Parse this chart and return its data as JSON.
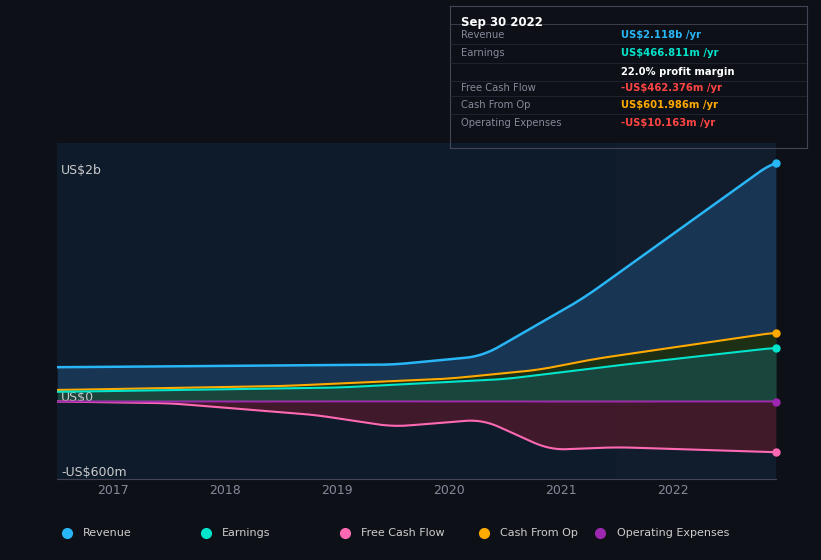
{
  "bg_color": "#0d1117",
  "plot_bg_color": "#0d1b2a",
  "ylabel_top": "US$2b",
  "ylabel_zero": "US$0",
  "ylabel_bottom": "-US$600m",
  "x_ticks": [
    2017,
    2018,
    2019,
    2020,
    2021,
    2022
  ],
  "xlim": [
    2016.5,
    2022.92
  ],
  "ylim": [
    -700,
    2300
  ],
  "series": {
    "revenue": {
      "color": "#29b6f6",
      "fill_color": "#1a3a5c",
      "label": "Revenue"
    },
    "earnings": {
      "color": "#00e5cc",
      "fill_color": "#1a4a45",
      "label": "Earnings"
    },
    "free_cash_flow": {
      "color": "#ff69b4",
      "fill_color": "#4a1a2a",
      "label": "Free Cash Flow"
    },
    "cash_from_op": {
      "color": "#ffaa00",
      "fill_color": "#2a3010",
      "label": "Cash From Op"
    },
    "operating_expenses": {
      "color": "#9c27b0",
      "fill_color": "#1a0a2a",
      "label": "Operating Expenses"
    }
  },
  "legend_items": [
    {
      "label": "Revenue",
      "color": "#29b6f6"
    },
    {
      "label": "Earnings",
      "color": "#00e5cc"
    },
    {
      "label": "Free Cash Flow",
      "color": "#ff69b4"
    },
    {
      "label": "Cash From Op",
      "color": "#ffaa00"
    },
    {
      "label": "Operating Expenses",
      "color": "#9c27b0"
    }
  ],
  "info_box": {
    "date": "Sep 30 2022",
    "rows": [
      {
        "label": "Revenue",
        "value": "US$2.118b /yr",
        "value_color": "#29b6f6",
        "sub": null
      },
      {
        "label": "Earnings",
        "value": "US$466.811m /yr",
        "value_color": "#00e5cc",
        "sub": "22.0% profit margin"
      },
      {
        "label": "Free Cash Flow",
        "value": "-US$462.376m /yr",
        "value_color": "#ff4444",
        "sub": null
      },
      {
        "label": "Cash From Op",
        "value": "US$601.986m /yr",
        "value_color": "#ffaa00",
        "sub": null
      },
      {
        "label": "Operating Expenses",
        "value": "-US$10.163m /yr",
        "value_color": "#ff4444",
        "sub": null
      }
    ]
  },
  "highlight_x_start": 2021.5
}
